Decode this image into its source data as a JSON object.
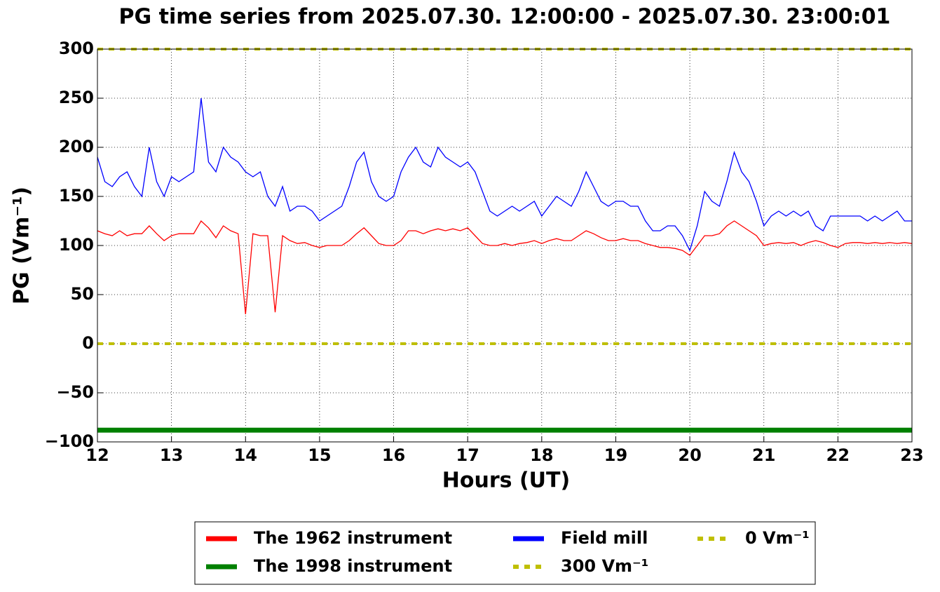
{
  "chart_data": {
    "type": "line",
    "title": "PG time series from 2025.07.30. 12:00:00 - 2025.07.30. 23:00:01",
    "x_label": "Hours (UT)",
    "y_label": "PG (Vm⁻¹)",
    "xlim": [
      12,
      23
    ],
    "ylim": [
      -100,
      300
    ],
    "xticks": [
      12,
      13,
      14,
      15,
      16,
      17,
      18,
      19,
      20,
      21,
      22,
      23
    ],
    "yticks": [
      {
        "value": -100,
        "label": "−100"
      },
      {
        "value": -50,
        "label": "−50"
      },
      0,
      50,
      100,
      150,
      200,
      250,
      300
    ],
    "grid": true,
    "legend": "below",
    "x": [
      12.0,
      12.1,
      12.2,
      12.3,
      12.4,
      12.5,
      12.6,
      12.7,
      12.8,
      12.9,
      13.0,
      13.1,
      13.2,
      13.3,
      13.4,
      13.5,
      13.6,
      13.7,
      13.8,
      13.9,
      14.0,
      14.1,
      14.2,
      14.3,
      14.4,
      14.5,
      14.6,
      14.7,
      14.8,
      14.9,
      15.0,
      15.1,
      15.2,
      15.3,
      15.4,
      15.5,
      15.6,
      15.7,
      15.8,
      15.9,
      16.0,
      16.1,
      16.2,
      16.3,
      16.4,
      16.5,
      16.6,
      16.7,
      16.8,
      16.9,
      17.0,
      17.1,
      17.2,
      17.3,
      17.4,
      17.5,
      17.6,
      17.7,
      17.8,
      17.9,
      18.0,
      18.1,
      18.2,
      18.3,
      18.4,
      18.5,
      18.6,
      18.7,
      18.8,
      18.9,
      19.0,
      19.1,
      19.2,
      19.3,
      19.4,
      19.5,
      19.6,
      19.7,
      19.8,
      19.9,
      20.0,
      20.1,
      20.2,
      20.3,
      20.4,
      20.5,
      20.6,
      20.7,
      20.8,
      20.9,
      21.0,
      21.1,
      21.2,
      21.3,
      21.4,
      21.5,
      21.6,
      21.7,
      21.8,
      21.9,
      22.0,
      22.1,
      22.2,
      22.3,
      22.4,
      22.5,
      22.6,
      22.7,
      22.8,
      22.9,
      23.0
    ],
    "series": [
      {
        "name": "The 1962 instrument",
        "color": "#ff0000",
        "width": 1.3,
        "values": [
          115,
          112,
          110,
          115,
          110,
          112,
          112,
          120,
          112,
          105,
          110,
          112,
          112,
          112,
          125,
          118,
          108,
          120,
          115,
          112,
          30,
          112,
          110,
          110,
          32,
          110,
          105,
          102,
          103,
          100,
          98,
          100,
          100,
          100,
          105,
          112,
          118,
          110,
          102,
          100,
          100,
          105,
          115,
          115,
          112,
          115,
          117,
          115,
          117,
          115,
          118,
          110,
          102,
          100,
          100,
          102,
          100,
          102,
          103,
          105,
          102,
          105,
          107,
          105,
          105,
          110,
          115,
          112,
          108,
          105,
          105,
          107,
          105,
          105,
          102,
          100,
          98,
          98,
          97,
          95,
          90,
          100,
          110,
          110,
          112,
          120,
          125,
          120,
          115,
          110,
          100,
          102,
          103,
          102,
          103,
          100,
          103,
          105,
          103,
          100,
          98,
          102,
          103,
          103,
          102,
          103,
          102,
          103,
          102,
          103,
          102
        ]
      },
      {
        "name": "The 1998 instrument",
        "color": "#008000",
        "width": 7,
        "x": [
          12,
          23
        ],
        "values": [
          -88,
          -88
        ]
      },
      {
        "name": "Field mill",
        "color": "#0000ff",
        "width": 1.3,
        "values": [
          190,
          165,
          160,
          170,
          175,
          160,
          150,
          200,
          165,
          150,
          170,
          165,
          170,
          175,
          250,
          185,
          175,
          200,
          190,
          185,
          175,
          170,
          175,
          150,
          140,
          160,
          135,
          140,
          140,
          135,
          125,
          130,
          135,
          140,
          160,
          185,
          195,
          165,
          150,
          145,
          150,
          175,
          190,
          200,
          185,
          180,
          200,
          190,
          185,
          180,
          185,
          175,
          155,
          135,
          130,
          135,
          140,
          135,
          140,
          145,
          130,
          140,
          150,
          145,
          140,
          155,
          175,
          160,
          145,
          140,
          145,
          145,
          140,
          140,
          125,
          115,
          115,
          120,
          120,
          110,
          95,
          120,
          155,
          145,
          140,
          165,
          195,
          175,
          165,
          145,
          120,
          130,
          135,
          130,
          135,
          130,
          135,
          120,
          115,
          130,
          130,
          130,
          130,
          130,
          125,
          130,
          125,
          130,
          135,
          125,
          125
        ]
      },
      {
        "name": "300 Vm⁻¹",
        "color": "#bfbf00",
        "width": 4,
        "dash": true,
        "x": [
          12,
          23
        ],
        "values": [
          300,
          300
        ]
      },
      {
        "name": "0 Vm⁻¹",
        "color": "#bfbf00",
        "width": 4,
        "dash": true,
        "x": [
          12,
          23
        ],
        "values": [
          0,
          0
        ]
      }
    ]
  }
}
